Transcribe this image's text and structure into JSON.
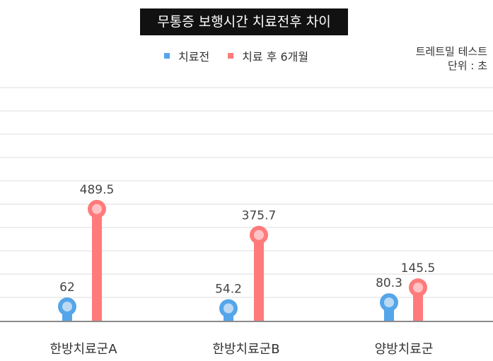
{
  "title": "무통증 보행시간 치료전후 차이",
  "legend": [
    {
      "label": "치료전",
      "color": "#55a5ea"
    },
    {
      "label": "치료 후 6개월",
      "color": "#ff7b7b"
    }
  ],
  "note": {
    "line1": "트레트밀 테스트",
    "line2": "단위 : 초"
  },
  "chart_data": {
    "type": "bar",
    "style": "lollipop",
    "title": "무통증 보행시간 치료전후 차이",
    "xlabel": "",
    "ylabel": "단위 : 초",
    "categories": [
      "한방치료군A",
      "한방치료군B",
      "양방치료군"
    ],
    "series": [
      {
        "name": "치료전",
        "color": "#55a5ea",
        "values": [
          62,
          54.2,
          80.3
        ]
      },
      {
        "name": "치료 후 6개월",
        "color": "#ff7b7b",
        "values": [
          489.5,
          375.7,
          145.5
        ]
      }
    ],
    "ylim": [
      0,
      1000
    ],
    "grid": true,
    "legend_position": "top",
    "annotation": "트레트밀 테스트"
  }
}
